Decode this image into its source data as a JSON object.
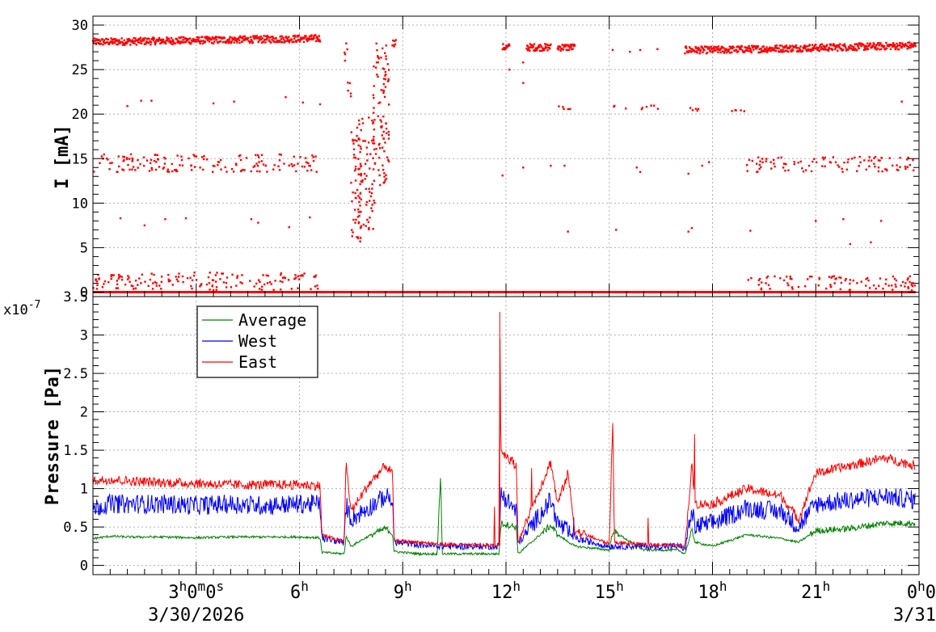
{
  "chart_data": [
    {
      "type": "scatter",
      "ylabel": "I [mA]",
      "ylim": [
        -0.5,
        31
      ],
      "yticks": [
        0,
        5,
        10,
        15,
        20,
        25,
        30
      ],
      "series": [
        {
          "color": "#ff0000",
          "segments": [
            {
              "x": [
                0.0,
                6.6
              ],
              "y": [
                28.1,
                28.5
              ]
            },
            {
              "x": [
                8.7,
                8.8
              ],
              "y": [
                28.0,
                28.0
              ]
            },
            {
              "x": [
                11.9,
                12.1
              ],
              "y": [
                27.5,
                27.5
              ]
            },
            {
              "x": [
                12.6,
                13.3
              ],
              "y": [
                27.5,
                27.5
              ]
            },
            {
              "x": [
                13.5,
                14.0
              ],
              "y": [
                27.5,
                27.5
              ]
            },
            {
              "x": [
                17.2,
                18.0
              ],
              "y": [
                27.2,
                27.2
              ]
            },
            {
              "x": [
                18.0,
                23.9
              ],
              "y": [
                27.2,
                27.7
              ]
            },
            {
              "x": [
                0.0,
                23.9
              ],
              "y": [
                0.0,
                0.0
              ]
            }
          ],
          "clusters": [
            {
              "x": [
                7.3,
                7.4
              ],
              "y": [
                26.0,
                28.5
              ]
            },
            {
              "x": [
                7.4,
                7.5
              ],
              "y": [
                21.0,
                24.0
              ]
            },
            {
              "x": [
                7.5,
                7.8
              ],
              "y": [
                5.0,
                19.0
              ]
            },
            {
              "x": [
                7.7,
                8.2
              ],
              "y": [
                7.0,
                20.0
              ]
            },
            {
              "x": [
                8.1,
                8.6
              ],
              "y": [
                12.0,
                28.0
              ]
            },
            {
              "x": [
                0.0,
                6.6
              ],
              "y": [
                13.5,
                15.5
              ]
            },
            {
              "x": [
                0.0,
                6.6
              ],
              "y": [
                0.2,
                2.2
              ]
            },
            {
              "x": [
                19.0,
                23.9
              ],
              "y": [
                13.5,
                15.2
              ]
            },
            {
              "x": [
                19.0,
                23.9
              ],
              "y": [
                0.2,
                1.8
              ]
            },
            {
              "x": [
                13.5,
                13.9
              ],
              "y": [
                20.5,
                21.0
              ]
            },
            {
              "x": [
                17.2,
                17.6
              ],
              "y": [
                20.3,
                20.8
              ]
            },
            {
              "x": [
                18.5,
                19.0
              ],
              "y": [
                20.3,
                20.8
              ]
            },
            {
              "x": [
                15.0,
                16.5
              ],
              "y": [
                20.5,
                21.0
              ]
            }
          ],
          "points": [
            {
              "x": 0.8,
              "y": 8.3
            },
            {
              "x": 1.5,
              "y": 7.5
            },
            {
              "x": 2.1,
              "y": 8.2
            },
            {
              "x": 2.7,
              "y": 8.3
            },
            {
              "x": 4.6,
              "y": 8.2
            },
            {
              "x": 4.8,
              "y": 7.8
            },
            {
              "x": 5.7,
              "y": 7.3
            },
            {
              "x": 6.3,
              "y": 8.4
            },
            {
              "x": 13.8,
              "y": 6.8
            },
            {
              "x": 15.2,
              "y": 7.0
            },
            {
              "x": 17.3,
              "y": 6.8
            },
            {
              "x": 17.4,
              "y": 7.2
            },
            {
              "x": 19.1,
              "y": 6.9
            },
            {
              "x": 21.0,
              "y": 8.0
            },
            {
              "x": 21.8,
              "y": 8.2
            },
            {
              "x": 22.0,
              "y": 5.4
            },
            {
              "x": 22.6,
              "y": 5.6
            },
            {
              "x": 22.9,
              "y": 8.0
            },
            {
              "x": 1.0,
              "y": 20.9
            },
            {
              "x": 1.4,
              "y": 21.5
            },
            {
              "x": 1.7,
              "y": 21.5
            },
            {
              "x": 3.5,
              "y": 21.2
            },
            {
              "x": 4.1,
              "y": 21.4
            },
            {
              "x": 5.6,
              "y": 21.9
            },
            {
              "x": 6.1,
              "y": 21.3
            },
            {
              "x": 6.6,
              "y": 21.1
            },
            {
              "x": 23.5,
              "y": 21.4
            },
            {
              "x": 12.1,
              "y": 25.0
            },
            {
              "x": 12.5,
              "y": 23.5
            },
            {
              "x": 12.5,
              "y": 25.8
            },
            {
              "x": 11.9,
              "y": 13.1
            },
            {
              "x": 12.5,
              "y": 14.0
            },
            {
              "x": 13.3,
              "y": 14.2
            },
            {
              "x": 13.7,
              "y": 14.2
            },
            {
              "x": 15.8,
              "y": 14.0
            },
            {
              "x": 15.9,
              "y": 13.5
            },
            {
              "x": 17.3,
              "y": 13.3
            },
            {
              "x": 17.7,
              "y": 14.2
            },
            {
              "x": 17.9,
              "y": 14.6
            },
            {
              "x": 23.6,
              "y": 14.1
            },
            {
              "x": 15.1,
              "y": 27.2
            },
            {
              "x": 15.6,
              "y": 27.0
            },
            {
              "x": 15.9,
              "y": 27.2
            },
            {
              "x": 16.4,
              "y": 27.3
            }
          ]
        }
      ]
    },
    {
      "type": "line",
      "ylabel": "Pressure [Pa]",
      "yscale_label": "x10",
      "yscale_exp": "-7",
      "ylim": [
        -0.12,
        3.5
      ],
      "yticks": [
        "0",
        "0.5",
        "1",
        "1.5",
        "2",
        "2.5",
        "3",
        "3.5"
      ],
      "xticks": [
        {
          "x": 3,
          "hour": "3",
          "suffix": "0",
          "minutes": "m",
          "suffix2": "0",
          "seconds": "s",
          "date": "3/30/2026"
        },
        {
          "x": 6,
          "hour": "6",
          "sup": "h"
        },
        {
          "x": 9,
          "hour": "9",
          "sup": "h"
        },
        {
          "x": 12,
          "hour": "12",
          "sup": "h"
        },
        {
          "x": 15,
          "hour": "15",
          "sup": "h"
        },
        {
          "x": 18,
          "hour": "18",
          "sup": "h"
        },
        {
          "x": 21,
          "hour": "21",
          "sup": "h"
        },
        {
          "x": 24,
          "hour": "0",
          "sup": "h",
          "tail": "0",
          "date": "3/31"
        }
      ],
      "legend": [
        "Average",
        "West",
        "East"
      ],
      "series": [
        {
          "name": "Average",
          "color": "#008000",
          "x": [
            0.0,
            0.5,
            1.0,
            2.0,
            3.0,
            4.0,
            5.0,
            6.0,
            6.6,
            6.65,
            7.3,
            7.35,
            7.5,
            8.0,
            8.5,
            8.7,
            8.75,
            9.5,
            10.0,
            10.1,
            10.15,
            11.0,
            11.8,
            11.85,
            12.3,
            12.35,
            13.3,
            13.5,
            14.0,
            15.0,
            15.1,
            16.0,
            17.0,
            17.2,
            17.4,
            17.5,
            18.0,
            19.0,
            20.0,
            20.5,
            21.0,
            22.0,
            23.0,
            23.9
          ],
          "y": [
            0.35,
            0.38,
            0.37,
            0.37,
            0.36,
            0.37,
            0.37,
            0.37,
            0.36,
            0.17,
            0.15,
            0.38,
            0.25,
            0.38,
            0.48,
            0.42,
            0.18,
            0.15,
            0.15,
            1.18,
            0.15,
            0.15,
            0.15,
            0.55,
            0.5,
            0.15,
            0.52,
            0.4,
            0.25,
            0.2,
            0.45,
            0.2,
            0.2,
            0.15,
            0.45,
            0.3,
            0.25,
            0.4,
            0.35,
            0.3,
            0.45,
            0.48,
            0.55,
            0.55
          ]
        },
        {
          "name": "West",
          "color": "#0000ff",
          "x": [
            0.0,
            0.5,
            1.0,
            2.0,
            3.0,
            4.0,
            5.0,
            6.0,
            6.6,
            6.65,
            7.3,
            7.35,
            7.5,
            8.0,
            8.5,
            8.7,
            8.75,
            9.5,
            10.0,
            11.0,
            11.8,
            11.85,
            12.3,
            12.35,
            13.3,
            13.5,
            14.0,
            15.0,
            16.0,
            17.0,
            17.2,
            17.4,
            17.5,
            18.0,
            19.0,
            20.0,
            20.5,
            21.0,
            22.0,
            23.0,
            23.9
          ],
          "y": [
            0.75,
            0.8,
            0.8,
            0.8,
            0.78,
            0.8,
            0.78,
            0.8,
            0.8,
            0.35,
            0.3,
            0.8,
            0.6,
            0.75,
            0.9,
            0.85,
            0.3,
            0.27,
            0.25,
            0.25,
            0.25,
            0.95,
            0.7,
            0.28,
            0.85,
            0.55,
            0.35,
            0.25,
            0.25,
            0.25,
            0.22,
            0.7,
            0.5,
            0.55,
            0.75,
            0.7,
            0.5,
            0.8,
            0.85,
            0.9,
            0.85
          ]
        },
        {
          "name": "East",
          "color": "#ff0000",
          "x": [
            0.0,
            0.5,
            1.0,
            2.0,
            3.0,
            4.0,
            5.0,
            6.0,
            6.6,
            6.65,
            7.3,
            7.35,
            7.5,
            8.0,
            8.5,
            8.7,
            8.75,
            9.5,
            10.0,
            11.0,
            11.8,
            11.82,
            11.85,
            12.3,
            12.35,
            13.3,
            13.5,
            13.8,
            14.0,
            15.0,
            15.1,
            15.15,
            16.0,
            17.0,
            17.2,
            17.4,
            17.5,
            18.0,
            19.0,
            20.0,
            20.5,
            21.0,
            22.0,
            23.0,
            23.9
          ],
          "y": [
            1.1,
            1.12,
            1.1,
            1.08,
            1.07,
            1.05,
            1.05,
            1.05,
            1.04,
            0.4,
            0.3,
            1.35,
            0.7,
            1.05,
            1.3,
            1.2,
            0.32,
            0.3,
            0.28,
            0.26,
            0.26,
            3.3,
            1.5,
            1.3,
            0.3,
            1.35,
            0.8,
            1.2,
            0.45,
            0.28,
            1.9,
            0.3,
            0.27,
            0.26,
            0.25,
            1.3,
            0.8,
            0.8,
            1.0,
            0.9,
            0.6,
            1.2,
            1.3,
            1.4,
            1.3
          ]
        }
      ]
    }
  ]
}
